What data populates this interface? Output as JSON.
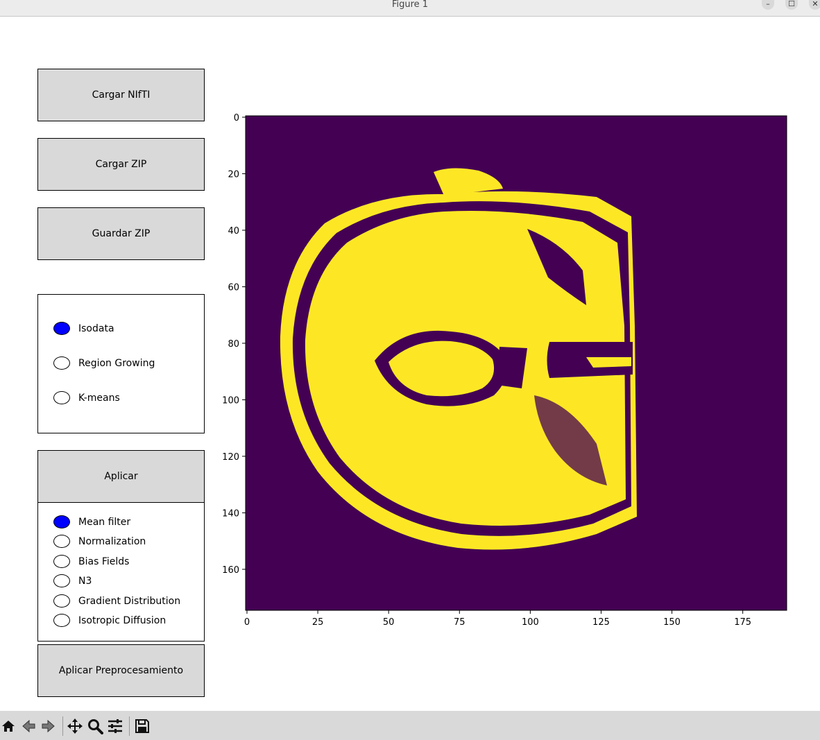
{
  "window": {
    "title": "Figure 1",
    "minimize": "–",
    "maximize": "☐",
    "close": "✕"
  },
  "buttons": {
    "load_nifti": "Cargar NIfTI",
    "load_zip": "Cargar ZIP",
    "save_zip": "Guardar ZIP",
    "apply": "Aplicar",
    "apply_preprocessing": "Aplicar Preprocesamiento"
  },
  "segmentation_methods": {
    "options": [
      "Isodata",
      "Region Growing",
      "K-means"
    ],
    "selected_index": 0
  },
  "preprocessing_methods": {
    "options": [
      "Mean filter",
      "Normalization",
      "Bias Fields",
      "N3",
      "Gradient Distribution",
      "Isotropic Diffusion"
    ],
    "selected_index": 0
  },
  "colors": {
    "background_class": "#440154",
    "foreground_class": "#fde725",
    "selected_radio": "#0000ff"
  },
  "chart_data": {
    "type": "heatmap",
    "description_of_axes": "image pixel indices",
    "xlim": [
      0,
      191
    ],
    "ylim": [
      175,
      0
    ],
    "xticks": [
      0,
      25,
      50,
      75,
      100,
      125,
      150,
      175
    ],
    "yticks": [
      0,
      20,
      40,
      60,
      80,
      100,
      120,
      140,
      160
    ],
    "colormap": "viridis",
    "values": "binary segmentation mask (0 = background, 1 = foreground) of an axial head slice"
  },
  "toolbar": {
    "icons": [
      "home-icon",
      "back-icon",
      "forward-icon",
      "pan-icon",
      "zoom-icon",
      "configure-subplots-icon",
      "save-icon"
    ]
  }
}
